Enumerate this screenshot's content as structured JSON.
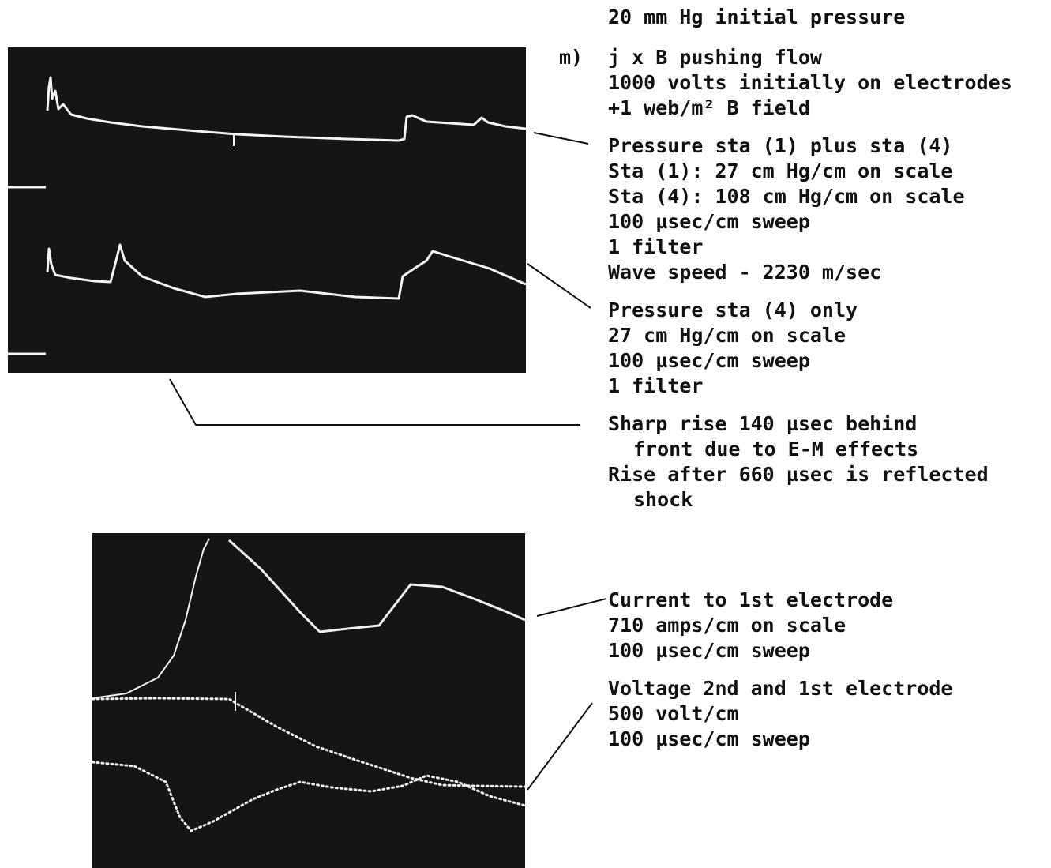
{
  "header": {
    "title": "20 mm Hg initial pressure"
  },
  "run": {
    "label": "m)",
    "lines": [
      "j x B pushing flow",
      "1000 volts initially on electrodes",
      "+1 web/m² B field"
    ]
  },
  "annotations": [
    {
      "lines": [
        "Pressure sta (1) plus sta (4)",
        "Sta (1): 27 cm Hg/cm on scale",
        "Sta (4): 108 cm Hg/cm on scale",
        "100 µsec/cm sweep",
        "1 filter",
        "Wave speed - 2230 m/sec"
      ]
    },
    {
      "lines": [
        "Pressure sta (4) only",
        "27 cm Hg/cm on scale",
        "100 µsec/cm sweep",
        "1 filter"
      ]
    },
    {
      "lines": [
        "Sharp rise 140 µsec behind",
        "front due to E-M effects",
        "Rise after 660 µsec is reflected",
        "shock"
      ],
      "indented": [
        false,
        true,
        false,
        true
      ]
    },
    {
      "lines": [
        "Current to 1st electrode",
        "710 amps/cm on scale",
        "100 µsec/cm sweep"
      ]
    },
    {
      "lines": [
        "Voltage 2nd and 1st electrode",
        "500 volt/cm",
        "100 µsec/cm sweep"
      ]
    }
  ]
}
